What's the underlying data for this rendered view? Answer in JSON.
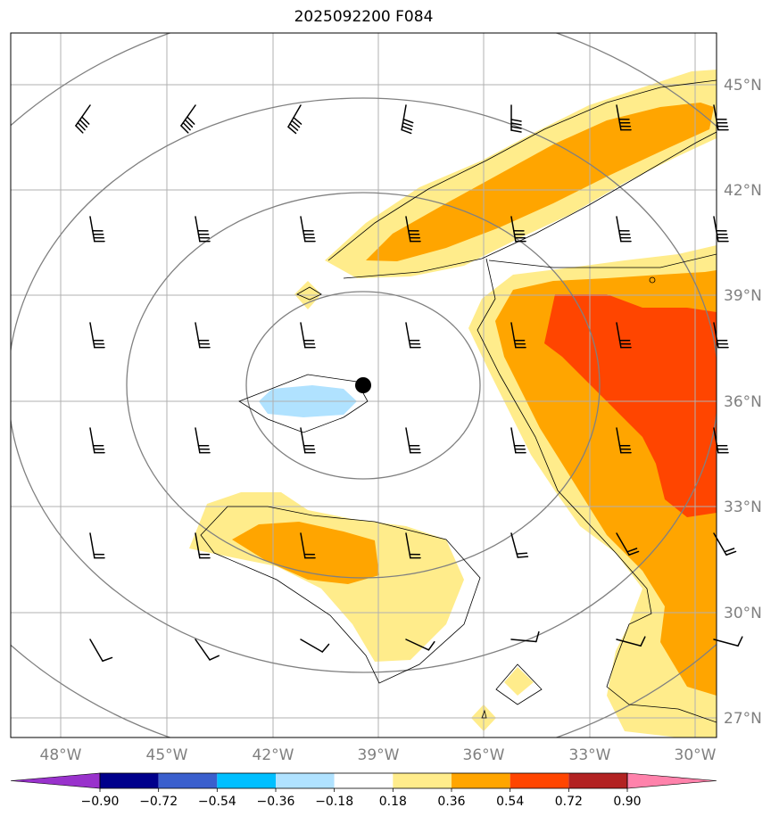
{
  "title": "2025092200 F084",
  "map": {
    "lon_labels": [
      "48°W",
      "45°W",
      "42°W",
      "39°W",
      "36°W",
      "33°W",
      "30°W"
    ],
    "lat_labels": [
      "45°N",
      "42°N",
      "39°N",
      "36°N",
      "33°N",
      "30°N",
      "27°N"
    ],
    "storm_center": {
      "lon": "39.4°W",
      "lat": "36.5°N"
    }
  },
  "colorbar": {
    "labels": [
      "−0.90",
      "−0.72",
      "−0.54",
      "−0.36",
      "−0.18",
      "0.18",
      "0.36",
      "0.54",
      "0.72",
      "0.90"
    ],
    "colors": [
      "#9932cc",
      "#00008b",
      "#3a5fcd",
      "#00bfff",
      "#b0e2ff",
      "#ffffff",
      "#ffec8b",
      "#ffa500",
      "#ff4500",
      "#b22222",
      "#ff82ab"
    ]
  }
}
